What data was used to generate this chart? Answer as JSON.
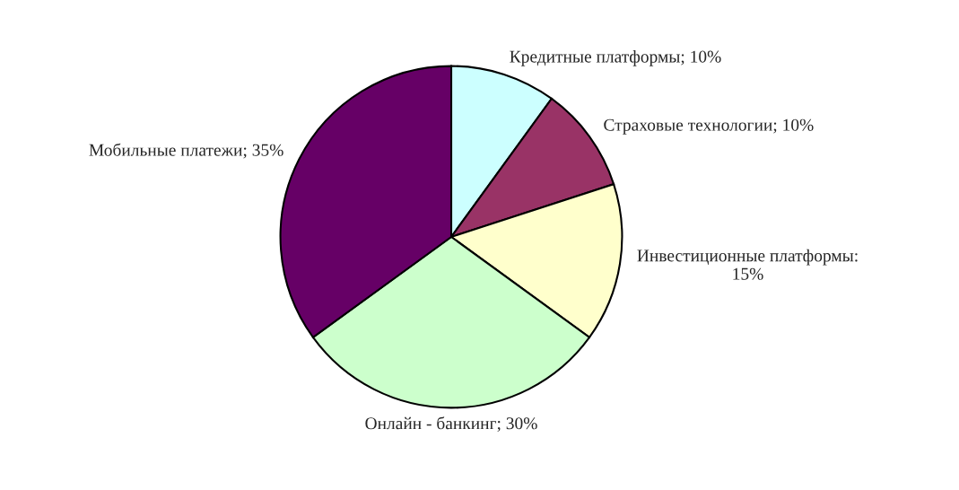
{
  "chart_data": {
    "type": "pie",
    "categories": [
      "Кредитные платформы; 10%",
      "Страховые технологии; 10%",
      "Инвестиционные платформы:\n15%",
      "Онлайн - банкинг; 30%",
      "Мобильные платежи; 35%"
    ],
    "values": [
      10,
      10,
      15,
      30,
      35
    ],
    "colors": [
      "#ccffff",
      "#993366",
      "#ffffcc",
      "#ccffcc",
      "#660066"
    ]
  }
}
